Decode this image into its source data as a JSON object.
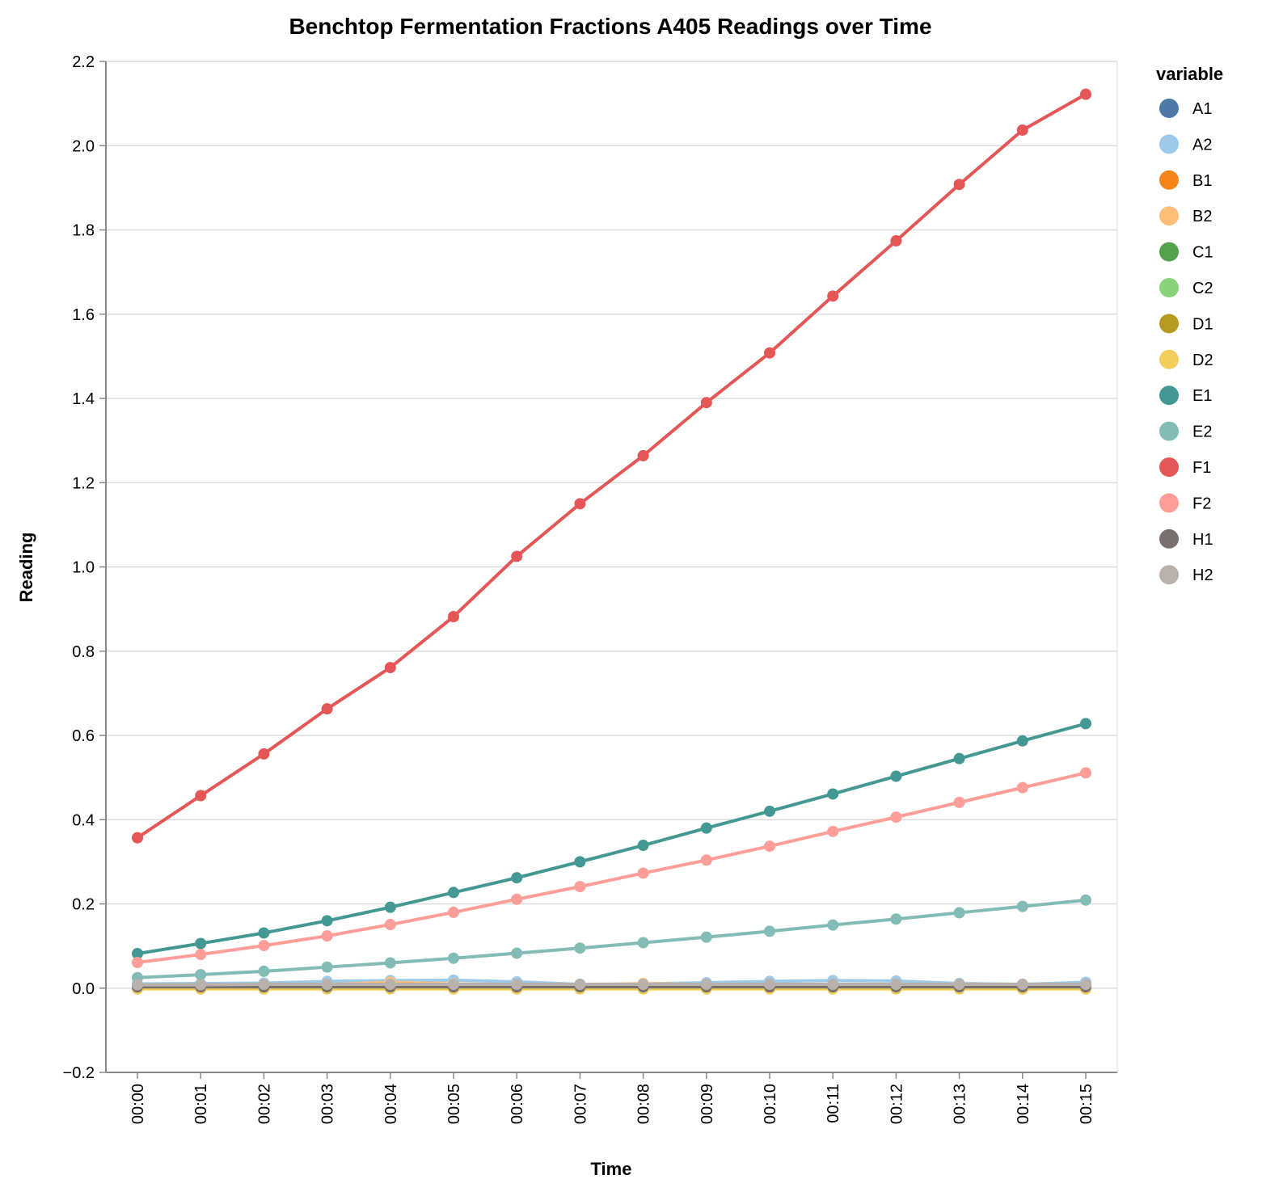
{
  "chart_data": {
    "type": "line",
    "title": "Benchtop Fermentation Fractions A405 Readings over Time",
    "xlabel": "Time",
    "ylabel": "Reading",
    "ylim": [
      -0.2,
      2.2
    ],
    "yticks": [
      "−0.2",
      "0.0",
      "0.2",
      "0.4",
      "0.6",
      "0.8",
      "1.0",
      "1.2",
      "1.4",
      "1.6",
      "1.8",
      "2.0",
      "2.2"
    ],
    "grid": true,
    "legend_title": "variable",
    "legend_position": "right",
    "x": [
      "00:00",
      "00:01",
      "00:02",
      "00:03",
      "00:04",
      "00:05",
      "00:06",
      "00:07",
      "00:08",
      "00:09",
      "00:10",
      "00:11",
      "00:12",
      "00:13",
      "00:14",
      "00:15"
    ],
    "series": [
      {
        "name": "A1",
        "color": "#4c78a8",
        "values": [
          0.006,
          0.006,
          0.006,
          0.006,
          0.006,
          0.006,
          0.005,
          0.005,
          0.005,
          0.005,
          0.006,
          0.006,
          0.006,
          0.006,
          0.006,
          0.006
        ]
      },
      {
        "name": "A2",
        "color": "#9ecae9",
        "values": [
          0.01,
          0.011,
          0.012,
          0.016,
          0.018,
          0.019,
          0.015,
          0.009,
          0.01,
          0.013,
          0.016,
          0.018,
          0.017,
          0.011,
          0.009,
          0.014
        ]
      },
      {
        "name": "B1",
        "color": "#f58518",
        "values": [
          0.003,
          0.003,
          0.003,
          0.003,
          0.004,
          0.004,
          0.004,
          0.004,
          0.008,
          0.005,
          0.004,
          0.004,
          0.004,
          0.004,
          0.004,
          0.004
        ]
      },
      {
        "name": "B2",
        "color": "#ffbf79",
        "values": [
          0.005,
          0.005,
          0.006,
          0.008,
          0.014,
          0.01,
          0.008,
          0.007,
          0.011,
          0.008,
          0.008,
          0.009,
          0.009,
          0.008,
          0.007,
          0.007
        ]
      },
      {
        "name": "C1",
        "color": "#54a24b",
        "values": [
          0.002,
          0.002,
          0.002,
          0.002,
          0.002,
          0.002,
          0.002,
          0.002,
          0.002,
          0.002,
          0.002,
          0.002,
          0.002,
          0.002,
          0.002,
          0.002
        ]
      },
      {
        "name": "C2",
        "color": "#88d27a",
        "values": [
          0.004,
          0.004,
          0.004,
          0.005,
          0.005,
          0.005,
          0.005,
          0.005,
          0.005,
          0.005,
          0.005,
          0.005,
          0.005,
          0.005,
          0.005,
          0.005
        ]
      },
      {
        "name": "D1",
        "color": "#b79a20",
        "values": [
          0.0,
          0.0,
          -0.001,
          -0.001,
          -0.001,
          -0.001,
          -0.001,
          -0.001,
          -0.001,
          -0.001,
          0.0,
          0.0,
          0.0,
          0.0,
          0.0,
          0.0
        ]
      },
      {
        "name": "D2",
        "color": "#f2cf5b",
        "values": [
          -0.002,
          -0.002,
          -0.002,
          -0.002,
          -0.002,
          -0.002,
          -0.002,
          -0.002,
          -0.002,
          -0.002,
          -0.002,
          -0.002,
          -0.002,
          -0.002,
          -0.002,
          -0.002
        ]
      },
      {
        "name": "E1",
        "color": "#439894",
        "values": [
          0.082,
          0.106,
          0.131,
          0.16,
          0.192,
          0.227,
          0.262,
          0.3,
          0.339,
          0.38,
          0.42,
          0.461,
          0.503,
          0.545,
          0.587,
          0.628
        ]
      },
      {
        "name": "E2",
        "color": "#83bcb6",
        "values": [
          0.025,
          0.032,
          0.04,
          0.05,
          0.06,
          0.071,
          0.083,
          0.095,
          0.108,
          0.121,
          0.135,
          0.15,
          0.164,
          0.179,
          0.194,
          0.209
        ]
      },
      {
        "name": "F1",
        "color": "#e45756",
        "values": [
          0.357,
          0.457,
          0.556,
          0.663,
          0.761,
          0.882,
          1.025,
          1.15,
          1.264,
          1.39,
          1.508,
          1.643,
          1.774,
          1.908,
          2.037,
          2.122
        ]
      },
      {
        "name": "F2",
        "color": "#ff9d98",
        "values": [
          0.061,
          0.08,
          0.101,
          0.124,
          0.151,
          0.18,
          0.211,
          0.241,
          0.273,
          0.304,
          0.337,
          0.372,
          0.406,
          0.441,
          0.476,
          0.511
        ]
      },
      {
        "name": "H1",
        "color": "#79706e",
        "values": [
          0.003,
          0.003,
          0.003,
          0.003,
          0.003,
          0.003,
          0.003,
          0.003,
          0.003,
          0.003,
          0.003,
          0.003,
          0.003,
          0.003,
          0.003,
          0.003
        ]
      },
      {
        "name": "H2",
        "color": "#bab0ac",
        "values": [
          0.008,
          0.008,
          0.009,
          0.009,
          0.009,
          0.009,
          0.009,
          0.009,
          0.009,
          0.009,
          0.009,
          0.009,
          0.009,
          0.009,
          0.009,
          0.009
        ]
      }
    ]
  }
}
